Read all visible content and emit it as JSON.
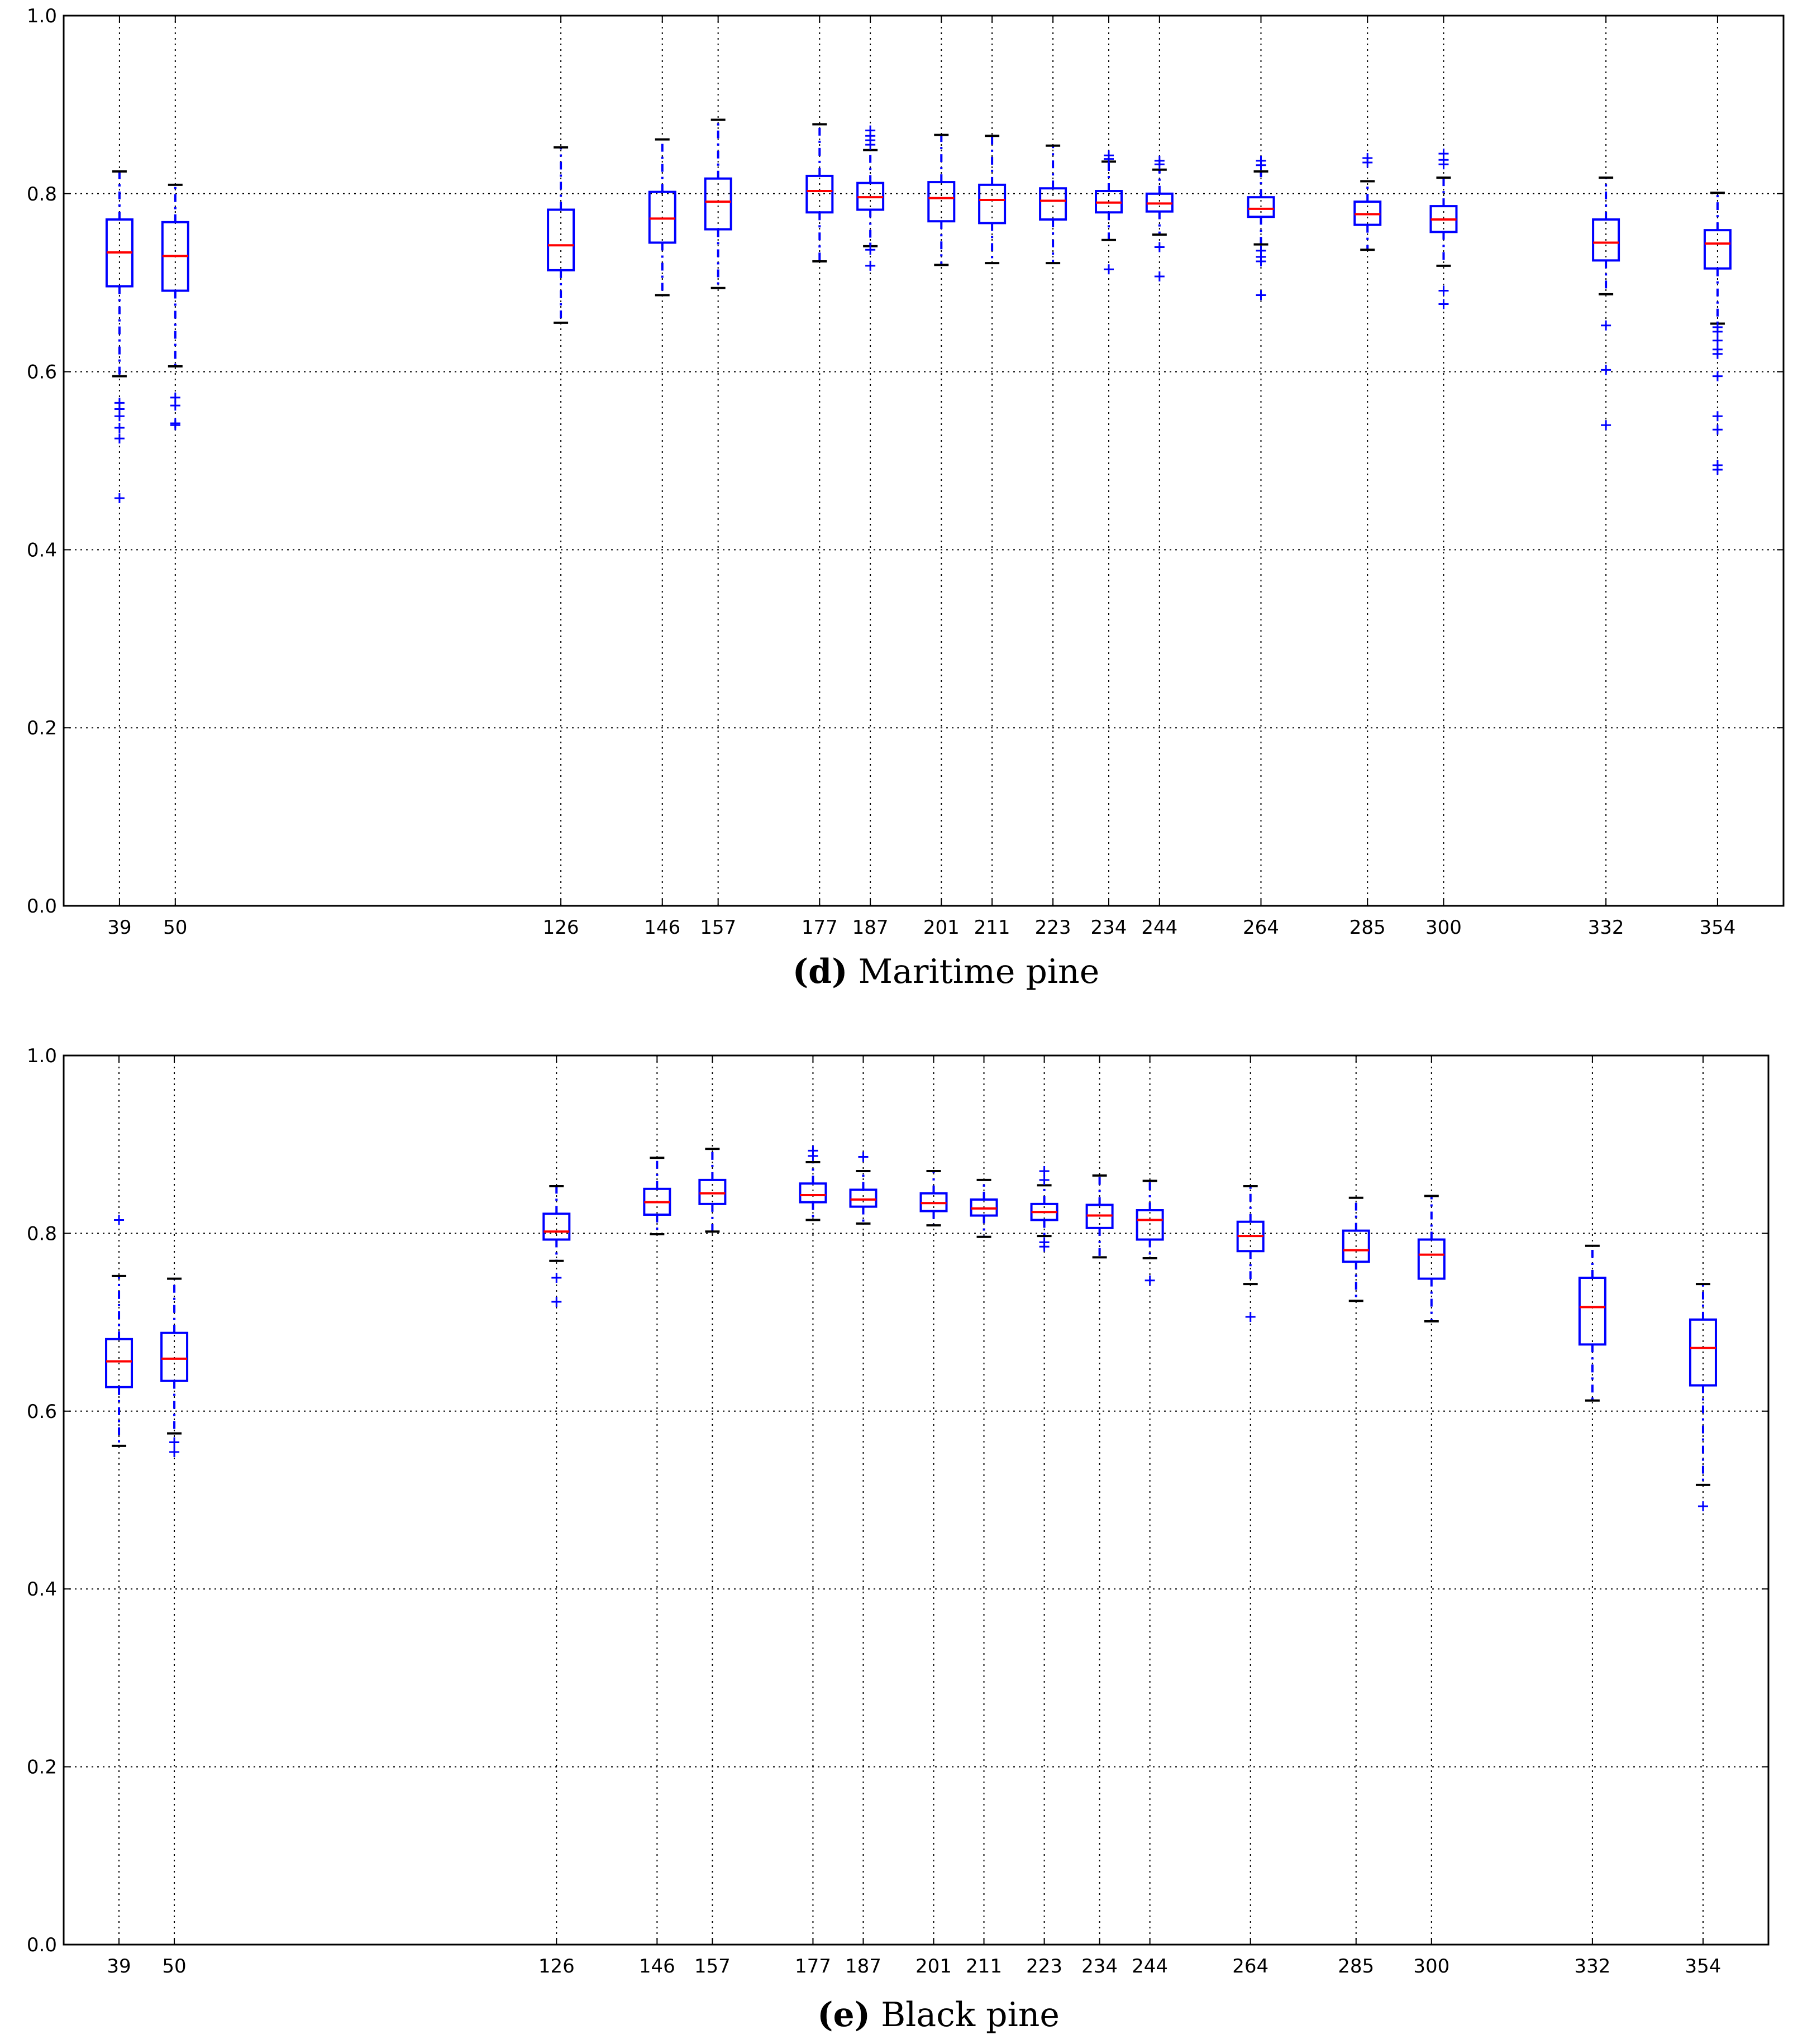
{
  "chart_data": [
    {
      "type": "box",
      "caption_letter": "(d)",
      "caption_text": "Maritime pine",
      "xticks": [
        39,
        50,
        126,
        146,
        157,
        177,
        187,
        201,
        211,
        223,
        234,
        244,
        264,
        285,
        300,
        332,
        354
      ],
      "xlim": [
        28,
        367
      ],
      "ylim": [
        0.0,
        1.0
      ],
      "yticks": [
        "0.0",
        "0.2",
        "0.4",
        "0.6",
        "0.8",
        "1.0"
      ],
      "grid": true,
      "boxes": [
        {
          "x": 39,
          "low": 0.595,
          "q1": 0.696,
          "median": 0.734,
          "q3": 0.771,
          "high": 0.825,
          "fliers": [
            0.565,
            0.558,
            0.55,
            0.537,
            0.525,
            0.458
          ]
        },
        {
          "x": 50,
          "low": 0.606,
          "q1": 0.691,
          "median": 0.73,
          "q3": 0.768,
          "high": 0.81,
          "fliers": [
            0.571,
            0.562,
            0.542,
            0.54
          ]
        },
        {
          "x": 126,
          "low": 0.655,
          "q1": 0.714,
          "median": 0.742,
          "q3": 0.782,
          "high": 0.852,
          "fliers": []
        },
        {
          "x": 146,
          "low": 0.686,
          "q1": 0.745,
          "median": 0.772,
          "q3": 0.802,
          "high": 0.861,
          "fliers": []
        },
        {
          "x": 157,
          "low": 0.694,
          "q1": 0.76,
          "median": 0.791,
          "q3": 0.817,
          "high": 0.883,
          "fliers": []
        },
        {
          "x": 177,
          "low": 0.724,
          "q1": 0.779,
          "median": 0.803,
          "q3": 0.82,
          "high": 0.878,
          "fliers": []
        },
        {
          "x": 187,
          "low": 0.741,
          "q1": 0.782,
          "median": 0.796,
          "q3": 0.812,
          "high": 0.849,
          "fliers": [
            0.871,
            0.865,
            0.86,
            0.855,
            0.737,
            0.719
          ]
        },
        {
          "x": 201,
          "low": 0.72,
          "q1": 0.769,
          "median": 0.795,
          "q3": 0.813,
          "high": 0.866,
          "fliers": []
        },
        {
          "x": 211,
          "low": 0.722,
          "q1": 0.767,
          "median": 0.793,
          "q3": 0.81,
          "high": 0.865,
          "fliers": []
        },
        {
          "x": 223,
          "low": 0.722,
          "q1": 0.771,
          "median": 0.792,
          "q3": 0.806,
          "high": 0.854,
          "fliers": []
        },
        {
          "x": 234,
          "low": 0.748,
          "q1": 0.779,
          "median": 0.79,
          "q3": 0.803,
          "high": 0.836,
          "fliers": [
            0.843,
            0.839,
            0.715
          ]
        },
        {
          "x": 244,
          "low": 0.754,
          "q1": 0.78,
          "median": 0.789,
          "q3": 0.8,
          "high": 0.827,
          "fliers": [
            0.837,
            0.833,
            0.74,
            0.707
          ]
        },
        {
          "x": 264,
          "low": 0.743,
          "q1": 0.774,
          "median": 0.783,
          "q3": 0.796,
          "high": 0.825,
          "fliers": [
            0.837,
            0.832,
            0.736,
            0.729,
            0.724,
            0.686
          ]
        },
        {
          "x": 285,
          "low": 0.737,
          "q1": 0.765,
          "median": 0.777,
          "q3": 0.791,
          "high": 0.814,
          "fliers": [
            0.84,
            0.835
          ]
        },
        {
          "x": 300,
          "low": 0.719,
          "q1": 0.757,
          "median": 0.771,
          "q3": 0.786,
          "high": 0.818,
          "fliers": [
            0.845,
            0.838,
            0.833,
            0.691,
            0.676
          ]
        },
        {
          "x": 332,
          "low": 0.687,
          "q1": 0.725,
          "median": 0.745,
          "q3": 0.771,
          "high": 0.818,
          "fliers": [
            0.652,
            0.602,
            0.54
          ]
        },
        {
          "x": 354,
          "low": 0.654,
          "q1": 0.716,
          "median": 0.744,
          "q3": 0.759,
          "high": 0.801,
          "fliers": [
            0.65,
            0.645,
            0.635,
            0.625,
            0.62,
            0.595,
            0.55,
            0.535,
            0.495,
            0.49
          ]
        }
      ]
    },
    {
      "type": "box",
      "caption_letter": "(e)",
      "caption_text": "Black pine",
      "xticks": [
        39,
        50,
        126,
        146,
        157,
        177,
        187,
        201,
        211,
        223,
        234,
        244,
        264,
        285,
        300,
        332,
        354
      ],
      "xlim": [
        28,
        367
      ],
      "ylim": [
        0.0,
        1.0
      ],
      "yticks": [
        "0.0",
        "0.2",
        "0.4",
        "0.6",
        "0.8",
        "1.0"
      ],
      "grid": true,
      "boxes": [
        {
          "x": 39,
          "low": 0.561,
          "q1": 0.627,
          "median": 0.656,
          "q3": 0.681,
          "high": 0.752,
          "fliers": [
            0.815
          ]
        },
        {
          "x": 50,
          "low": 0.575,
          "q1": 0.634,
          "median": 0.659,
          "q3": 0.688,
          "high": 0.749,
          "fliers": [
            0.565,
            0.554
          ]
        },
        {
          "x": 126,
          "low": 0.769,
          "q1": 0.793,
          "median": 0.802,
          "q3": 0.822,
          "high": 0.853,
          "fliers": [
            0.75,
            0.723
          ]
        },
        {
          "x": 146,
          "low": 0.799,
          "q1": 0.821,
          "median": 0.835,
          "q3": 0.85,
          "high": 0.885,
          "fliers": []
        },
        {
          "x": 157,
          "low": 0.802,
          "q1": 0.833,
          "median": 0.845,
          "q3": 0.86,
          "high": 0.895,
          "fliers": []
        },
        {
          "x": 177,
          "low": 0.815,
          "q1": 0.835,
          "median": 0.843,
          "q3": 0.856,
          "high": 0.88,
          "fliers": [
            0.893,
            0.887
          ]
        },
        {
          "x": 187,
          "low": 0.811,
          "q1": 0.83,
          "median": 0.838,
          "q3": 0.849,
          "high": 0.87,
          "fliers": [
            0.886
          ]
        },
        {
          "x": 201,
          "low": 0.809,
          "q1": 0.825,
          "median": 0.834,
          "q3": 0.845,
          "high": 0.87,
          "fliers": []
        },
        {
          "x": 211,
          "low": 0.796,
          "q1": 0.82,
          "median": 0.828,
          "q3": 0.838,
          "high": 0.86,
          "fliers": []
        },
        {
          "x": 223,
          "low": 0.797,
          "q1": 0.815,
          "median": 0.824,
          "q3": 0.833,
          "high": 0.854,
          "fliers": [
            0.87,
            0.86,
            0.79,
            0.785
          ]
        },
        {
          "x": 234,
          "low": 0.773,
          "q1": 0.806,
          "median": 0.82,
          "q3": 0.832,
          "high": 0.865,
          "fliers": []
        },
        {
          "x": 244,
          "low": 0.772,
          "q1": 0.793,
          "median": 0.815,
          "q3": 0.826,
          "high": 0.859,
          "fliers": [
            0.747
          ]
        },
        {
          "x": 264,
          "low": 0.743,
          "q1": 0.78,
          "median": 0.797,
          "q3": 0.813,
          "high": 0.853,
          "fliers": [
            0.706
          ]
        },
        {
          "x": 285,
          "low": 0.724,
          "q1": 0.768,
          "median": 0.781,
          "q3": 0.803,
          "high": 0.84,
          "fliers": []
        },
        {
          "x": 300,
          "low": 0.701,
          "q1": 0.749,
          "median": 0.776,
          "q3": 0.793,
          "high": 0.842,
          "fliers": []
        },
        {
          "x": 332,
          "low": 0.612,
          "q1": 0.675,
          "median": 0.717,
          "q3": 0.75,
          "high": 0.786,
          "fliers": []
        },
        {
          "x": 354,
          "low": 0.517,
          "q1": 0.629,
          "median": 0.671,
          "q3": 0.703,
          "high": 0.743,
          "fliers": [
            0.493
          ]
        }
      ]
    }
  ]
}
